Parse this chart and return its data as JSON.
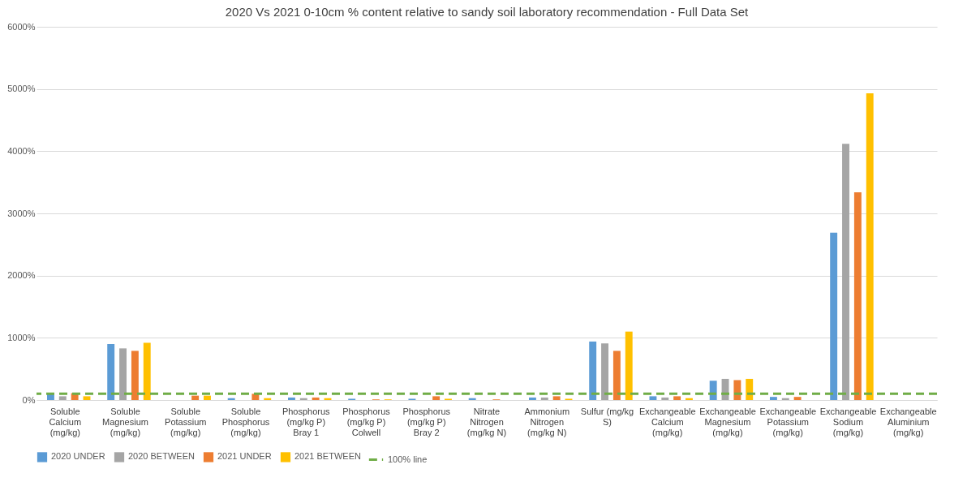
{
  "chart_data": {
    "type": "bar",
    "title": "2020 Vs 2021 0-10cm % content relative to sandy soil laboratory recommendation - Full Data Set",
    "categories": [
      "Soluble Calcium (mg/kg)",
      "Soluble Magnesium (mg/kg)",
      "Soluble Potassium (mg/kg)",
      "Soluble Phosphorus (mg/kg)",
      "Phosphorus (mg/kg P) Bray 1",
      "Phosphorus (mg/kg P) Colwell",
      "Phosphorus (mg/kg P) Bray 2",
      "Nitrate Nitrogen (mg/kg N)",
      "Ammonium Nitrogen (mg/kg N)",
      "Sulfur (mg/kg S)",
      "Exchangeable Calcium (mg/kg)",
      "Exchangeable Magnesium (mg/kg)",
      "Exchangeable Potassium (mg/kg)",
      "Exchangeable Sodium (mg/kg)",
      "Exchangeable Aluminium (mg/kg)"
    ],
    "series": [
      {
        "name": "2020 UNDER",
        "color": "#5b9bd5",
        "values": [
          100,
          900,
          null,
          30,
          40,
          20,
          20,
          30,
          40,
          940,
          60,
          310,
          50,
          2690,
          null
        ]
      },
      {
        "name": "2020 BETWEEN",
        "color": "#a5a5a5",
        "values": [
          60,
          830,
          null,
          null,
          30,
          null,
          null,
          null,
          40,
          910,
          40,
          340,
          30,
          4120,
          null
        ]
      },
      {
        "name": "2021 UNDER",
        "color": "#ed7d31",
        "values": [
          110,
          790,
          70,
          100,
          40,
          10,
          60,
          10,
          60,
          790,
          60,
          320,
          50,
          3340,
          null
        ]
      },
      {
        "name": "2021 BETWEEN",
        "color": "#ffc000",
        "values": [
          60,
          920,
          70,
          30,
          30,
          10,
          20,
          null,
          20,
          1100,
          30,
          340,
          null,
          4930,
          null
        ]
      }
    ],
    "ref_lines": [
      {
        "axis": "y",
        "value": 100,
        "label": "100% line",
        "color": "#70ad47",
        "line_style": "dashed"
      }
    ],
    "ylim": [
      0,
      6000
    ],
    "yticks": [
      {
        "value": 0,
        "label": "0%"
      },
      {
        "value": 1000,
        "label": "1000%"
      },
      {
        "value": 2000,
        "label": "2000%"
      },
      {
        "value": 3000,
        "label": "3000%"
      },
      {
        "value": 4000,
        "label": "4000%"
      },
      {
        "value": 5000,
        "label": "5000%"
      },
      {
        "value": 6000,
        "label": "6000%"
      }
    ],
    "grid": "y",
    "legend": "bottom"
  }
}
